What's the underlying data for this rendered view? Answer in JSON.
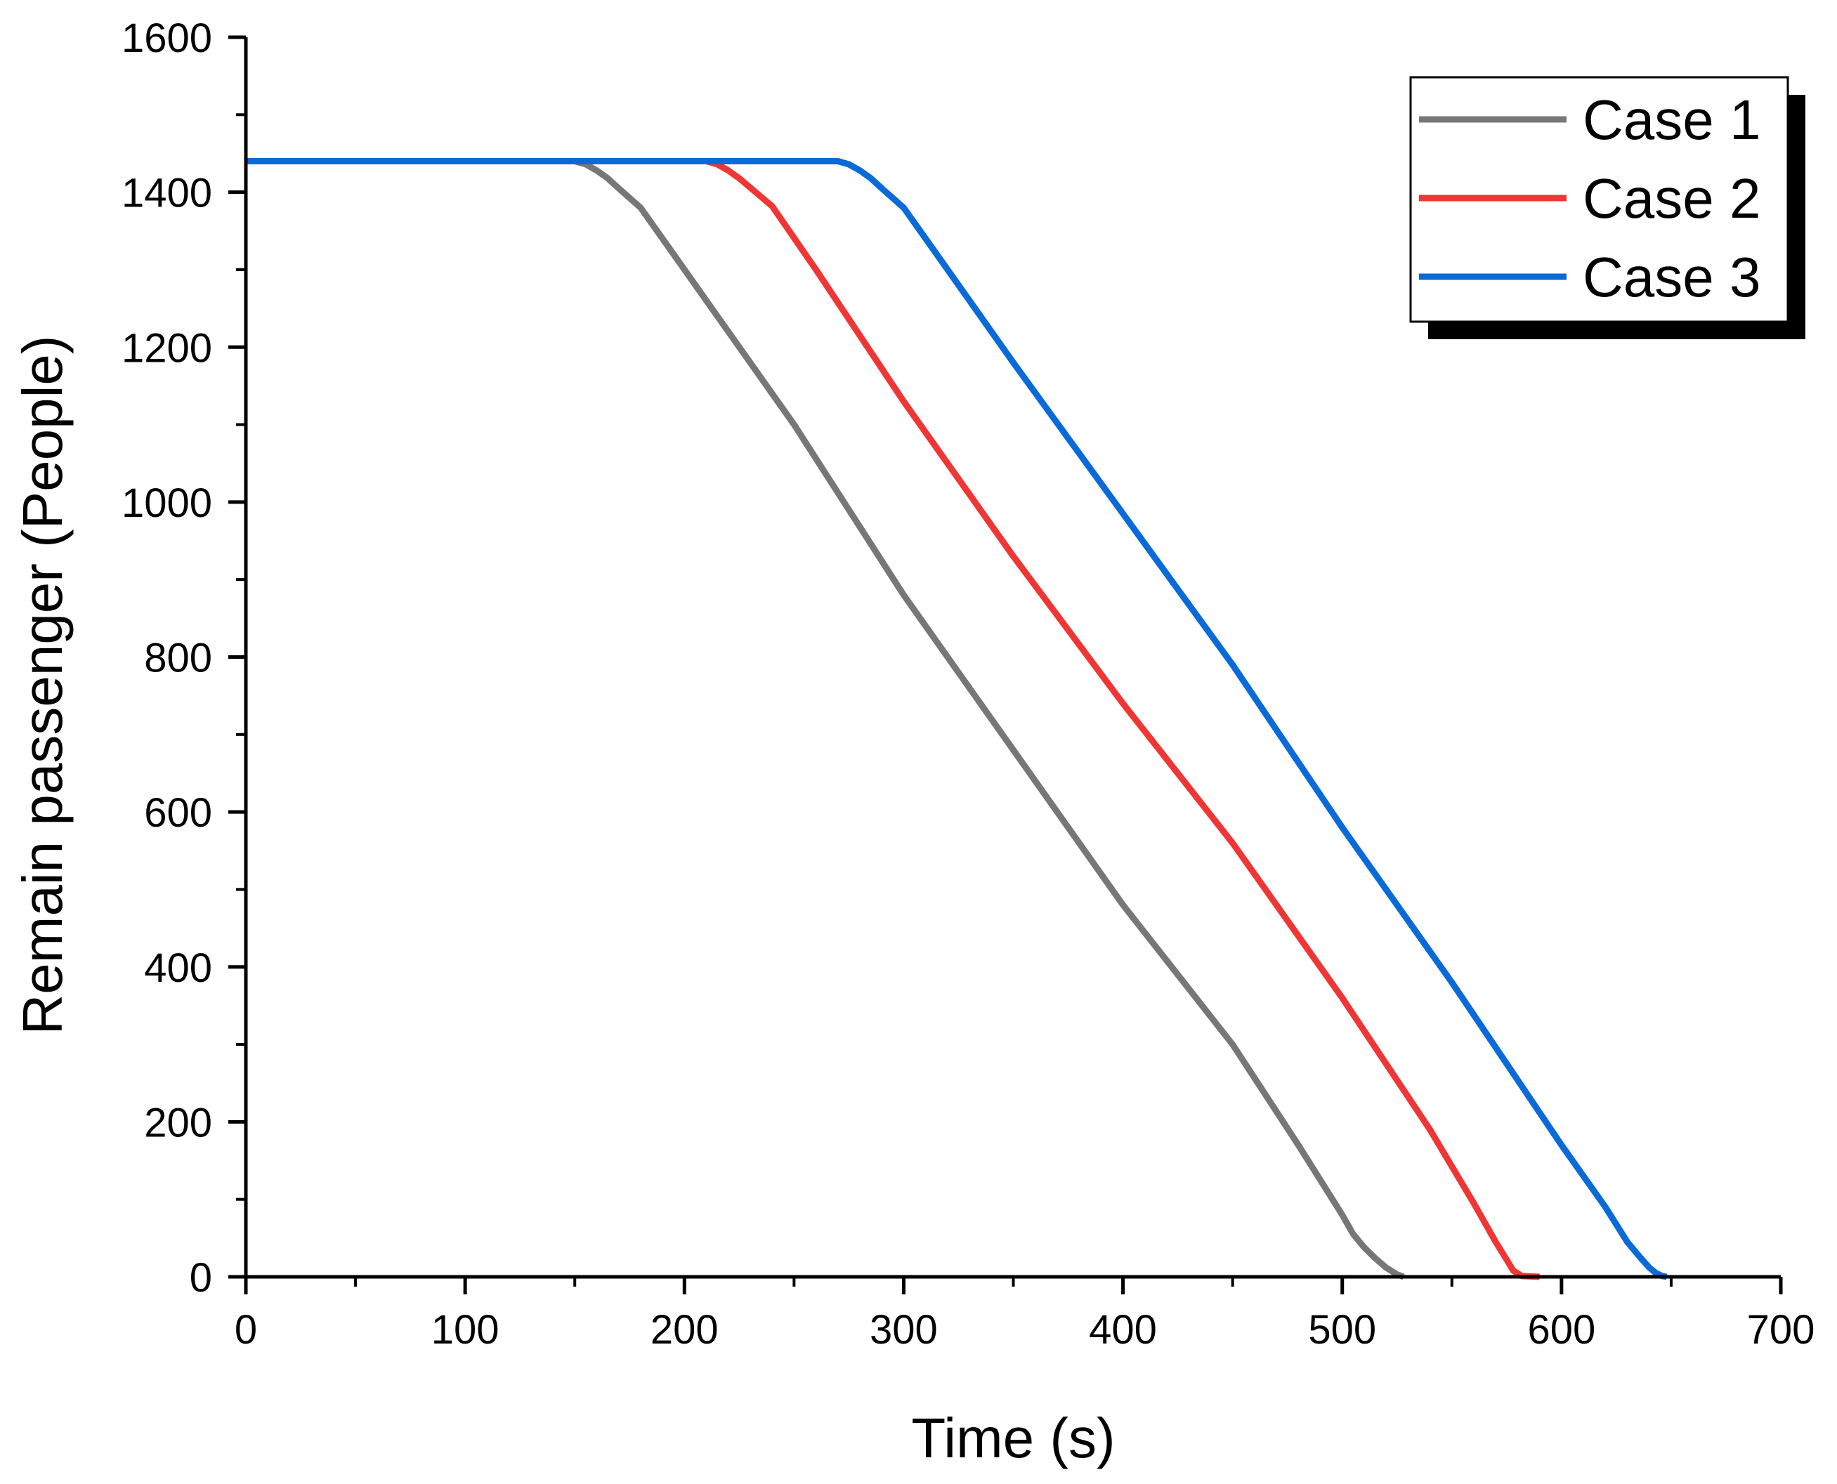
{
  "chart_data": {
    "type": "line",
    "title": "",
    "xlabel": "Time (s)",
    "ylabel": "Remain passenger (People)",
    "xlim": [
      0,
      700
    ],
    "ylim": [
      0,
      1600
    ],
    "xticks": [
      0,
      100,
      200,
      300,
      400,
      500,
      600,
      700
    ],
    "xtick_labels": [
      "0",
      "100",
      "200",
      "300",
      "400",
      "500",
      "600",
      "700"
    ],
    "yticks": [
      0,
      200,
      400,
      600,
      800,
      1000,
      1200,
      1400,
      1600
    ],
    "ytick_labels": [
      "0",
      "200",
      "400",
      "600",
      "800",
      "1000",
      "1200",
      "1400",
      "1600"
    ],
    "grid": false,
    "legend_position": "top-right",
    "series": [
      {
        "name": "Case 1",
        "color": "#777777",
        "x": [
          0,
          150,
          155,
          160,
          165,
          170,
          180,
          200,
          250,
          300,
          350,
          400,
          450,
          480,
          500,
          505,
          510,
          515,
          520,
          525,
          528
        ],
        "y": [
          1440,
          1440,
          1436,
          1428,
          1418,
          1405,
          1380,
          1300,
          1100,
          880,
          680,
          480,
          300,
          170,
          80,
          55,
          38,
          24,
          12,
          3,
          0
        ]
      },
      {
        "name": "Case 2",
        "color": "#f03535",
        "x": [
          0,
          210,
          215,
          220,
          225,
          230,
          240,
          260,
          300,
          350,
          400,
          450,
          500,
          540,
          560,
          565,
          570,
          575,
          578,
          582,
          590
        ],
        "y": [
          1440,
          1440,
          1436,
          1428,
          1418,
          1406,
          1382,
          1300,
          1130,
          930,
          740,
          560,
          360,
          190,
          95,
          70,
          45,
          22,
          8,
          1,
          0
        ]
      },
      {
        "name": "Case 3",
        "color": "#0a6ad8",
        "x": [
          0,
          270,
          275,
          280,
          285,
          290,
          300,
          320,
          350,
          400,
          450,
          500,
          550,
          600,
          620,
          630,
          635,
          640,
          643,
          646,
          648
        ],
        "y": [
          1440,
          1440,
          1436,
          1428,
          1418,
          1405,
          1380,
          1300,
          1180,
          985,
          790,
          580,
          380,
          170,
          90,
          45,
          28,
          12,
          5,
          1,
          0
        ]
      }
    ]
  }
}
